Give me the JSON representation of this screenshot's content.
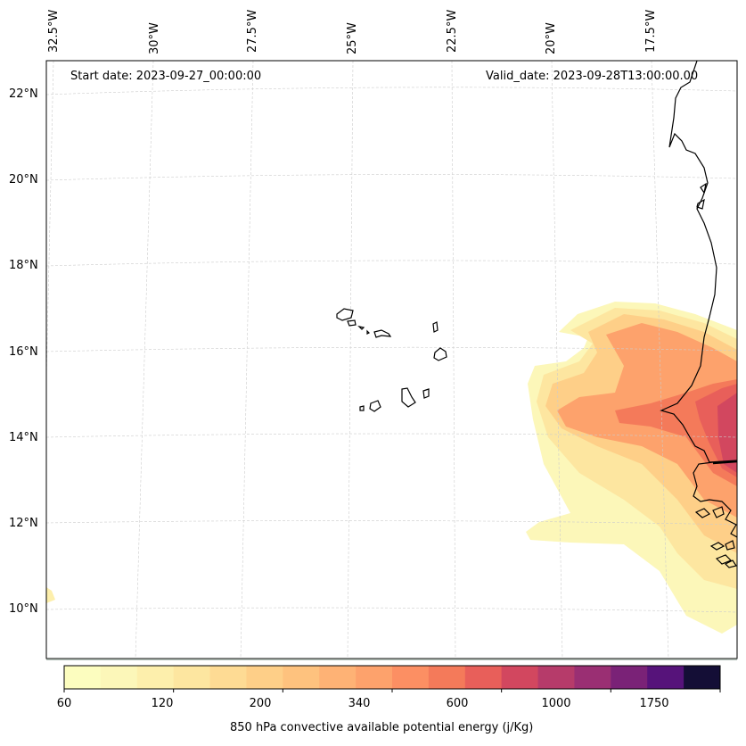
{
  "header": {
    "start_date": "Start date: 2023-09-27_00:00:00",
    "valid_date": "Valid_date: 2023-09-28T13:00:00.00"
  },
  "grid": {
    "lon_labels": [
      "32.5°W",
      "30°W",
      "27.5°W",
      "25°W",
      "22.5°W",
      "20°W",
      "17.5°W"
    ],
    "lat_labels": [
      "22°N",
      "20°N",
      "18°N",
      "16°N",
      "14°N",
      "12°N",
      "10°N"
    ]
  },
  "colorbar": {
    "tick_labels": [
      "60",
      "120",
      "200",
      "340",
      "600",
      "1000",
      "1750"
    ],
    "label": "850 hPa convective available potential energy (j/Kg)",
    "colors": [
      "#fcfdbf",
      "#fcf7b9",
      "#fdefac",
      "#fde6a0",
      "#fedb94",
      "#fecf88",
      "#fec27e",
      "#feb275",
      "#fda26c",
      "#fc8f63",
      "#f47a5a",
      "#e85f5a",
      "#d2475f",
      "#b63b6a",
      "#9a2f73",
      "#7a2277",
      "#56137a",
      "#140e36"
    ]
  },
  "map": {
    "coastline_color": "#000000",
    "grid_color": "#cccccc"
  }
}
